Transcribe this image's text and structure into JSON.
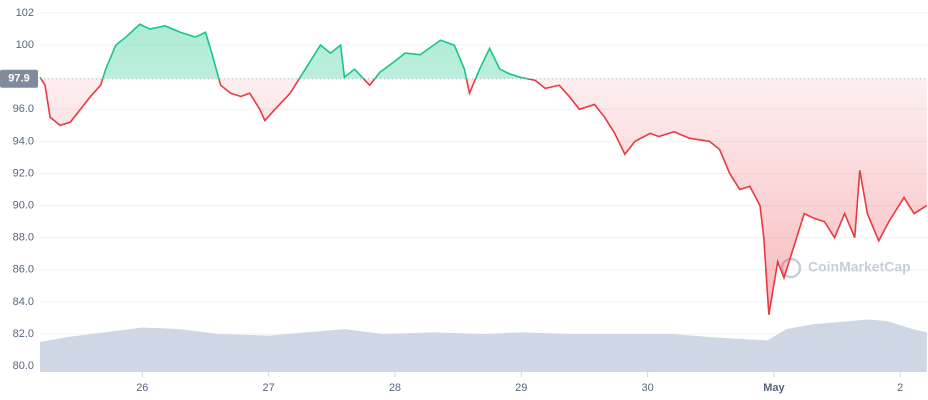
{
  "chart_data": {
    "type": "line",
    "x": [
      25.19,
      25.23,
      25.27,
      25.35,
      25.43,
      25.51,
      25.59,
      25.67,
      25.71,
      25.79,
      25.87,
      25.98,
      26.06,
      26.18,
      26.3,
      26.42,
      26.5,
      26.55,
      26.62,
      26.7,
      26.78,
      26.85,
      26.93,
      26.97,
      27.05,
      27.17,
      27.25,
      27.33,
      27.41,
      27.49,
      27.57,
      27.6,
      27.68,
      27.8,
      27.88,
      28.0,
      28.08,
      28.2,
      28.36,
      28.47,
      28.55,
      28.59,
      28.67,
      28.75,
      28.83,
      28.91,
      28.99,
      29.11,
      29.19,
      29.3,
      29.38,
      29.46,
      29.58,
      29.66,
      29.74,
      29.82,
      29.9,
      30.02,
      30.09,
      30.21,
      30.33,
      30.49,
      30.57,
      30.65,
      30.73,
      30.81,
      30.89,
      30.92,
      30.96,
      31.03,
      31.08,
      31.16,
      31.24,
      31.32,
      31.4,
      31.48,
      31.56,
      31.64,
      31.68,
      31.74,
      31.83,
      31.91,
      32.03,
      32.11,
      32.21
    ],
    "values": [
      98.0,
      97.5,
      95.5,
      95.0,
      95.2,
      96.0,
      96.8,
      97.5,
      98.5,
      100.0,
      100.5,
      101.3,
      101.0,
      101.2,
      100.8,
      100.5,
      100.8,
      99.5,
      97.5,
      97.0,
      96.8,
      97.0,
      96.0,
      95.3,
      96.0,
      97.0,
      98.0,
      99.0,
      100.0,
      99.5,
      100.0,
      98.0,
      98.5,
      97.5,
      98.3,
      99.0,
      99.5,
      99.4,
      100.3,
      100.0,
      98.5,
      97.0,
      98.5,
      99.8,
      98.5,
      98.2,
      98.0,
      97.8,
      97.3,
      97.5,
      96.8,
      96.0,
      96.3,
      95.5,
      94.5,
      93.2,
      94.0,
      94.5,
      94.3,
      94.6,
      94.2,
      94.0,
      93.5,
      92.0,
      91.0,
      91.2,
      90.0,
      88.0,
      83.2,
      86.5,
      85.5,
      87.5,
      89.5,
      89.2,
      89.0,
      88.0,
      89.5,
      88.0,
      92.2,
      89.5,
      87.8,
      89.0,
      90.5,
      89.5,
      90.0
    ],
    "baseline": 97.9,
    "up_color": "#16c784",
    "down_color": "#ea3943",
    "volume": {
      "color": "#cfd6e4",
      "x": [
        25.19,
        25.4,
        25.7,
        26.0,
        26.3,
        26.6,
        27.0,
        27.3,
        27.6,
        27.9,
        28.3,
        28.7,
        29.0,
        29.4,
        29.8,
        30.2,
        30.5,
        30.7,
        30.95,
        31.1,
        31.3,
        31.6,
        31.75,
        31.9,
        32.1,
        32.21
      ],
      "values": [
        81.5,
        81.8,
        82.1,
        82.4,
        82.3,
        82.0,
        81.9,
        82.1,
        82.3,
        82.0,
        82.1,
        82.0,
        82.1,
        82.0,
        82.0,
        82.0,
        81.8,
        81.7,
        81.6,
        82.3,
        82.6,
        82.8,
        82.9,
        82.8,
        82.3,
        82.1
      ]
    },
    "xlim": [
      25.19,
      32.22
    ],
    "xticks": [
      26,
      27,
      28,
      29,
      30,
      {
        "value": 31,
        "label": "May"
      },
      {
        "value": 32,
        "label": "2"
      }
    ],
    "ylim": [
      79.63,
      102.81
    ],
    "yticks": [
      {
        "value": 80,
        "label": "80.0"
      },
      {
        "value": 82,
        "label": "82.0"
      },
      {
        "value": 84,
        "label": "84.0"
      },
      {
        "value": 86,
        "label": "86.0"
      },
      {
        "value": 88,
        "label": "88.0"
      },
      {
        "value": 90,
        "label": "90.0"
      },
      {
        "value": 92,
        "label": "92.0"
      },
      {
        "value": 94,
        "label": "94.0"
      },
      {
        "value": 96,
        "label": "96.0"
      },
      100,
      102
    ],
    "grid": true,
    "watermark": "CoinMarketCap"
  }
}
